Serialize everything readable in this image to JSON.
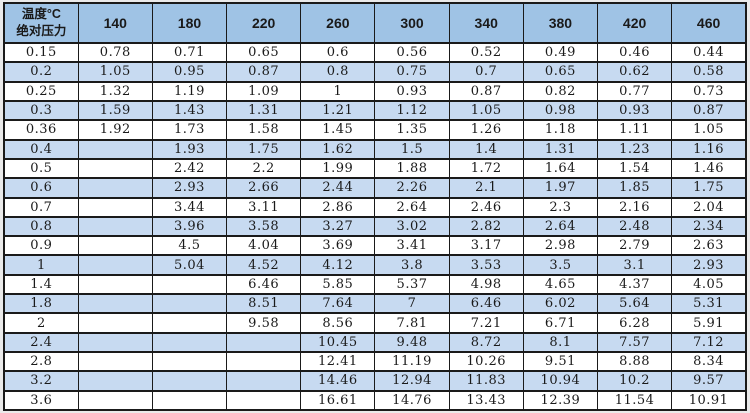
{
  "chart_data": {
    "type": "table",
    "corner_header": {
      "line1": "温度°C",
      "line2": "绝对压力"
    },
    "col_headers": [
      "140",
      "180",
      "220",
      "260",
      "300",
      "340",
      "380",
      "420",
      "460"
    ],
    "rows": [
      {
        "label": "0.15",
        "values": [
          "0.78",
          "0.71",
          "0.65",
          "0.6",
          "0.56",
          "0.52",
          "0.49",
          "0.46",
          "0.44"
        ]
      },
      {
        "label": "0.2",
        "values": [
          "1.05",
          "0.95",
          "0.87",
          "0.8",
          "0.75",
          "0.7",
          "0.65",
          "0.62",
          "0.58"
        ]
      },
      {
        "label": "0.25",
        "values": [
          "1.32",
          "1.19",
          "1.09",
          "1",
          "0.93",
          "0.87",
          "0.82",
          "0.77",
          "0.73"
        ]
      },
      {
        "label": "0.3",
        "values": [
          "1.59",
          "1.43",
          "1.31",
          "1.21",
          "1.12",
          "1.05",
          "0.98",
          "0.93",
          "0.87"
        ]
      },
      {
        "label": "0.36",
        "values": [
          "1.92",
          "1.73",
          "1.58",
          "1.45",
          "1.35",
          "1.26",
          "1.18",
          "1.11",
          "1.05"
        ]
      },
      {
        "label": "0.4",
        "values": [
          "",
          "1.93",
          "1.75",
          "1.62",
          "1.5",
          "1.4",
          "1.31",
          "1.23",
          "1.16"
        ]
      },
      {
        "label": "0.5",
        "values": [
          "",
          "2.42",
          "2.2",
          "1.99",
          "1.88",
          "1.72",
          "1.64",
          "1.54",
          "1.46"
        ]
      },
      {
        "label": "0.6",
        "values": [
          "",
          "2.93",
          "2.66",
          "2.44",
          "2.26",
          "2.1",
          "1.97",
          "1.85",
          "1.75"
        ]
      },
      {
        "label": "0.7",
        "values": [
          "",
          "3.44",
          "3.11",
          "2.86",
          "2.64",
          "2.46",
          "2.3",
          "2.16",
          "2.04"
        ]
      },
      {
        "label": "0.8",
        "values": [
          "",
          "3.96",
          "3.58",
          "3.27",
          "3.02",
          "2.82",
          "2.64",
          "2.48",
          "2.34"
        ]
      },
      {
        "label": "0.9",
        "values": [
          "",
          "4.5",
          "4.04",
          "3.69",
          "3.41",
          "3.17",
          "2.98",
          "2.79",
          "2.63"
        ]
      },
      {
        "label": "1",
        "values": [
          "",
          "5.04",
          "4.52",
          "4.12",
          "3.8",
          "3.53",
          "3.5",
          "3.1",
          "2.93"
        ]
      },
      {
        "label": "1.4",
        "values": [
          "",
          "",
          "6.46",
          "5.85",
          "5.37",
          "4.98",
          "4.65",
          "4.37",
          "4.05"
        ]
      },
      {
        "label": "1.8",
        "values": [
          "",
          "",
          "8.51",
          "7.64",
          "7",
          "6.46",
          "6.02",
          "5.64",
          "5.31"
        ]
      },
      {
        "label": "2",
        "values": [
          "",
          "",
          "9.58",
          "8.56",
          "7.81",
          "7.21",
          "6.71",
          "6.28",
          "5.91"
        ]
      },
      {
        "label": "2.4",
        "values": [
          "",
          "",
          "",
          "10.45",
          "9.48",
          "8.72",
          "8.1",
          "7.57",
          "7.12"
        ]
      },
      {
        "label": "2.8",
        "values": [
          "",
          "",
          "",
          "12.41",
          "11.19",
          "10.26",
          "9.51",
          "8.88",
          "8.34"
        ]
      },
      {
        "label": "3.2",
        "values": [
          "",
          "",
          "",
          "14.46",
          "12.94",
          "11.83",
          "10.94",
          "10.2",
          "9.57"
        ]
      },
      {
        "label": "3.6",
        "values": [
          "",
          "",
          "",
          "16.61",
          "14.76",
          "13.43",
          "12.39",
          "11.54",
          "10.91"
        ]
      }
    ],
    "colors": {
      "header_bg": "#9fc3e5",
      "row_alt_bg": "#c7daf1",
      "row_bg": "#ffffff",
      "border": "#1a1a1a",
      "text": "#1a1a1a"
    },
    "layout": {
      "striping": "rows alternate white / light blue starting with white",
      "grid": "on"
    }
  }
}
